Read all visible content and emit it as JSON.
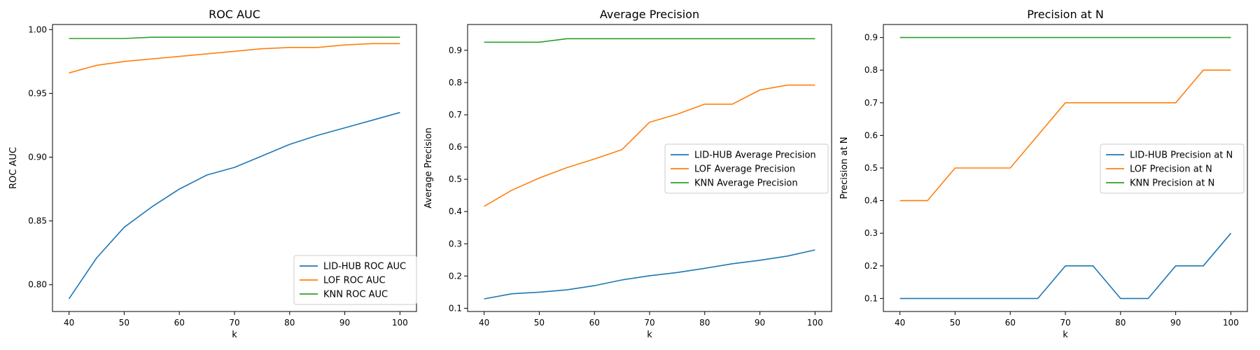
{
  "chart_data": [
    {
      "type": "line",
      "title": "ROC AUC",
      "xlabel": "k",
      "ylabel": "ROC AUC",
      "xlim": [
        37,
        103
      ],
      "ylim": [
        0.779,
        1.004
      ],
      "xticks": [
        40,
        50,
        60,
        70,
        80,
        90,
        100
      ],
      "xtick_labels": [
        "40",
        "50",
        "60",
        "70",
        "80",
        "90",
        "100"
      ],
      "yticks": [
        0.8,
        0.85,
        0.9,
        0.95,
        1.0
      ],
      "ytick_labels": [
        "0.80",
        "0.85",
        "0.90",
        "0.95",
        "1.00"
      ],
      "legend_position": "lower-right",
      "grid": false,
      "x": [
        40,
        45,
        50,
        55,
        60,
        65,
        70,
        75,
        80,
        85,
        90,
        95,
        100
      ],
      "series": [
        {
          "name": "LID-HUB ROC AUC",
          "color": "#1f77b4",
          "values": [
            0.789,
            0.821,
            0.845,
            0.861,
            0.875,
            0.886,
            0.892,
            0.901,
            0.91,
            0.917,
            0.923,
            0.929,
            0.935
          ]
        },
        {
          "name": "LOF ROC AUC",
          "color": "#ff7f0e",
          "values": [
            0.966,
            0.972,
            0.975,
            0.977,
            0.979,
            0.981,
            0.983,
            0.985,
            0.986,
            0.986,
            0.988,
            0.989,
            0.989
          ]
        },
        {
          "name": "KNN ROC AUC",
          "color": "#2ca02c",
          "values": [
            0.993,
            0.993,
            0.993,
            0.994,
            0.994,
            0.994,
            0.994,
            0.994,
            0.994,
            0.994,
            0.994,
            0.994,
            0.994
          ]
        }
      ]
    },
    {
      "type": "line",
      "title": "Average Precision",
      "xlabel": "k",
      "ylabel": "Average Precision",
      "xlim": [
        37,
        103
      ],
      "ylim": [
        0.09,
        0.98
      ],
      "xticks": [
        40,
        50,
        60,
        70,
        80,
        90,
        100
      ],
      "xtick_labels": [
        "40",
        "50",
        "60",
        "70",
        "80",
        "90",
        "100"
      ],
      "yticks": [
        0.1,
        0.2,
        0.3,
        0.4,
        0.5,
        0.6,
        0.7,
        0.8,
        0.9
      ],
      "ytick_labels": [
        "0.1",
        "0.2",
        "0.3",
        "0.4",
        "0.5",
        "0.6",
        "0.7",
        "0.8",
        "0.9"
      ],
      "legend_position": "center-right",
      "grid": false,
      "x": [
        40,
        45,
        50,
        55,
        60,
        65,
        70,
        75,
        80,
        85,
        90,
        95,
        100
      ],
      "series": [
        {
          "name": "LID-HUB Average Precision",
          "color": "#1f77b4",
          "values": [
            0.129,
            0.145,
            0.15,
            0.157,
            0.17,
            0.188,
            0.201,
            0.211,
            0.224,
            0.238,
            0.249,
            0.262,
            0.281
          ]
        },
        {
          "name": "LOF Average Precision",
          "color": "#ff7f0e",
          "values": [
            0.416,
            0.466,
            0.504,
            0.536,
            0.563,
            0.592,
            0.677,
            0.702,
            0.733,
            0.733,
            0.777,
            0.792,
            0.792
          ]
        },
        {
          "name": "KNN Average Precision",
          "color": "#2ca02c",
          "values": [
            0.925,
            0.925,
            0.925,
            0.936,
            0.936,
            0.936,
            0.936,
            0.936,
            0.936,
            0.936,
            0.936,
            0.936,
            0.936
          ]
        }
      ]
    },
    {
      "type": "line",
      "title": "Precision at N",
      "xlabel": "k",
      "ylabel": "Precision at N",
      "xlim": [
        37,
        103
      ],
      "ylim": [
        0.06,
        0.94
      ],
      "xticks": [
        40,
        50,
        60,
        70,
        80,
        90,
        100
      ],
      "xtick_labels": [
        "40",
        "50",
        "60",
        "70",
        "80",
        "90",
        "100"
      ],
      "yticks": [
        0.1,
        0.2,
        0.3,
        0.4,
        0.5,
        0.6,
        0.7,
        0.8,
        0.9
      ],
      "ytick_labels": [
        "0.1",
        "0.2",
        "0.3",
        "0.4",
        "0.5",
        "0.6",
        "0.7",
        "0.8",
        "0.9"
      ],
      "legend_position": "center-right",
      "grid": false,
      "x": [
        40,
        45,
        50,
        55,
        60,
        65,
        70,
        75,
        80,
        85,
        90,
        95,
        100
      ],
      "series": [
        {
          "name": "LID-HUB Precision at N",
          "color": "#1f77b4",
          "values": [
            0.1,
            0.1,
            0.1,
            0.1,
            0.1,
            0.1,
            0.2,
            0.2,
            0.1,
            0.1,
            0.2,
            0.2,
            0.3
          ]
        },
        {
          "name": "LOF Precision at N",
          "color": "#ff7f0e",
          "values": [
            0.4,
            0.4,
            0.5,
            0.5,
            0.5,
            0.6,
            0.7,
            0.7,
            0.7,
            0.7,
            0.7,
            0.8,
            0.8
          ]
        },
        {
          "name": "KNN Precision at N",
          "color": "#2ca02c",
          "values": [
            0.9,
            0.9,
            0.9,
            0.9,
            0.9,
            0.9,
            0.9,
            0.9,
            0.9,
            0.9,
            0.9,
            0.9,
            0.9
          ]
        }
      ]
    }
  ]
}
